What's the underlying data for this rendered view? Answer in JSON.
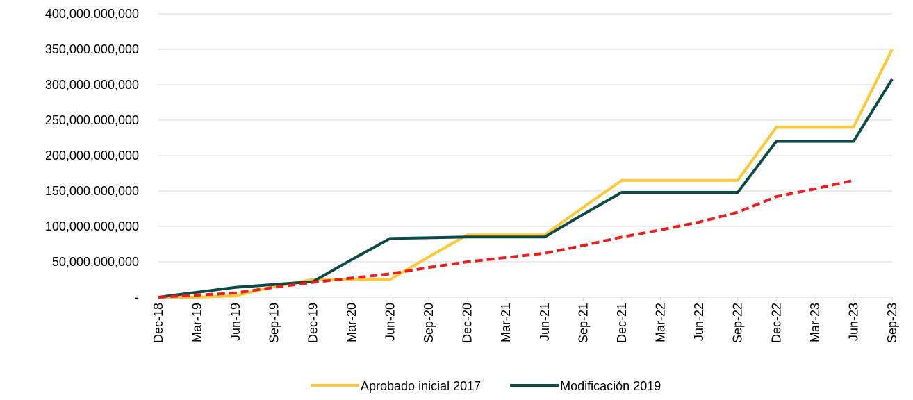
{
  "chart_data": {
    "type": "line",
    "categories": [
      "Dec-18",
      "Mar-19",
      "Jun-19",
      "Sep-19",
      "Dec-19",
      "Mar-20",
      "Jun-20",
      "Sep-20",
      "Dec-20",
      "Mar-21",
      "Jun-21",
      "Sep-21",
      "Dec-21",
      "Mar-22",
      "Jun-22",
      "Sep-22",
      "Dec-22",
      "Mar-23",
      "Jun-23",
      "Sep-23"
    ],
    "series": [
      {
        "name": "Aprobado inicial 2017",
        "color": "#fec938",
        "values": [
          0,
          0,
          2000000000,
          15000000000,
          25000000000,
          25000000000,
          25000000000,
          57000000000,
          88000000000,
          88000000000,
          88000000000,
          127000000000,
          165000000000,
          165000000000,
          165000000000,
          165000000000,
          240000000000,
          240000000000,
          240000000000,
          350000000000
        ]
      },
      {
        "name": "Modificación 2019",
        "color": "#0b4a46",
        "values": [
          0,
          7000000000,
          14000000000,
          18000000000,
          22000000000,
          53000000000,
          83000000000,
          84000000000,
          85000000000,
          85000000000,
          85000000000,
          117000000000,
          148000000000,
          148000000000,
          148000000000,
          148000000000,
          220000000000,
          220000000000,
          220000000000,
          308000000000
        ]
      },
      {
        "color": "#ee1c1c",
        "dashed": true,
        "values": [
          0,
          3000000000,
          6000000000,
          14000000000,
          21000000000,
          27000000000,
          33000000000,
          42000000000,
          50000000000,
          56000000000,
          62000000000,
          73000000000,
          85000000000,
          95000000000,
          106000000000,
          120000000000,
          142000000000,
          153000000000,
          165000000000,
          null
        ]
      }
    ],
    "ylim": [
      0,
      400000000000
    ],
    "yticks": [
      {
        "value": 0,
        "label": "-"
      },
      {
        "value": 50000000000,
        "label": "50,000,000,000"
      },
      {
        "value": 100000000000,
        "label": "100,000,000,000"
      },
      {
        "value": 150000000000,
        "label": "150,000,000,000"
      },
      {
        "value": 200000000000,
        "label": "200,000,000,000"
      },
      {
        "value": 250000000000,
        "label": "250,000,000,000"
      },
      {
        "value": 300000000000,
        "label": "300,000,000,000"
      },
      {
        "value": 350000000000,
        "label": "350,000,000,000"
      },
      {
        "value": 400000000000,
        "label": "400,000,000,000"
      }
    ],
    "grid": true,
    "legend": "bottom"
  }
}
